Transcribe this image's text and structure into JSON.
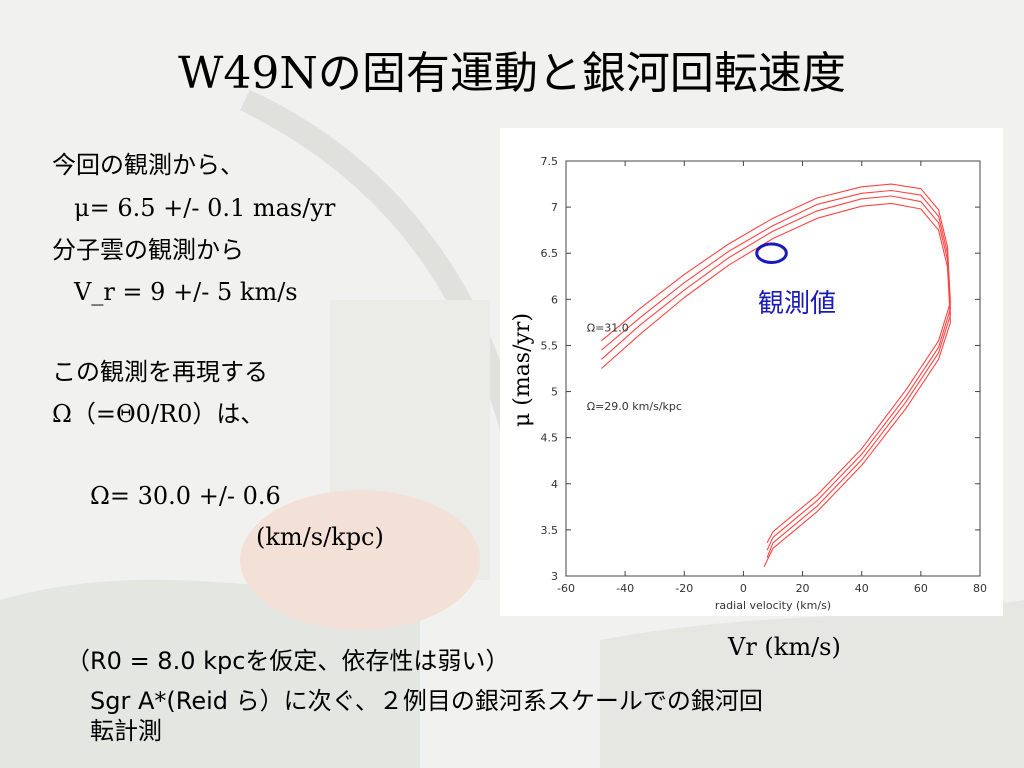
{
  "slide": {
    "title": "W49Nの固有運動と銀河回転速度",
    "left_text": {
      "line1": "今回の観測から、",
      "line2": "μ= 6.5 +/- 0.1 mas/yr",
      "line3": "分子雲の観測から",
      "line4": "V_r = 9 +/- 5 km/s",
      "line5": "この観測を再現する",
      "line6a": "Ω（=Θ0/R0）",
      "line6b": "は、",
      "line7": "Ω= 30.0 +/- 0.6",
      "line8": "(km/s/kpc)"
    },
    "bottom_text": {
      "line1": "（R0 = 8.0 kpcを仮定、依存性は弱い）",
      "line2": "Sgr A*(Reid ら）に次ぐ、２例目の銀河系スケールでの銀河回",
      "line3": "転計測"
    },
    "colors": {
      "curve": "#ff4444",
      "observed": "#1a1ab8"
    }
  },
  "chart_data": {
    "type": "line",
    "xlabel": "radial velocity (km/s)",
    "ylabel": "μ (mas/yr)",
    "xlabel_large": "Vr (km/s)",
    "xlim": [
      -60,
      80
    ],
    "ylim": [
      3,
      7.5
    ],
    "x_ticks": [
      -60,
      -40,
      -20,
      0,
      20,
      40,
      60,
      80
    ],
    "y_ticks": [
      3,
      3.5,
      4,
      4.5,
      5,
      5.5,
      6,
      6.5,
      7,
      7.5
    ],
    "x_tick_labels": [
      "-60",
      "-40",
      "-20",
      "0",
      "20",
      "40",
      "60",
      "80"
    ],
    "y_tick_labels": [
      "3",
      "3.5",
      "4",
      "4.5",
      "5",
      "5.5",
      "6",
      "6.5",
      "7",
      "7.5"
    ],
    "series": [
      {
        "x": [
          -48,
          -35,
          -20,
          -5,
          10,
          25,
          40,
          50,
          60,
          66,
          69,
          70,
          66,
          55,
          40,
          25,
          10,
          7
        ],
        "y": [
          5.25,
          5.62,
          6.02,
          6.37,
          6.66,
          6.88,
          7.01,
          7.04,
          6.98,
          6.75,
          6.35,
          5.75,
          5.35,
          4.82,
          4.2,
          3.7,
          3.3,
          3.1
        ]
      },
      {
        "x": [
          -48,
          -35,
          -20,
          -5,
          10,
          25,
          40,
          50,
          60,
          66,
          69,
          70,
          66,
          55,
          40,
          25,
          10,
          8
        ],
        "y": [
          5.35,
          5.72,
          6.1,
          6.45,
          6.74,
          6.96,
          7.09,
          7.12,
          7.06,
          6.83,
          6.43,
          5.83,
          5.42,
          4.89,
          4.26,
          3.76,
          3.36,
          3.2
        ]
      },
      {
        "x": [
          -48,
          -35,
          -20,
          -5,
          10,
          25,
          40,
          50,
          60,
          66,
          69,
          70,
          66,
          55,
          40,
          25,
          10,
          8
        ],
        "y": [
          5.45,
          5.8,
          6.18,
          6.52,
          6.8,
          7.03,
          7.15,
          7.18,
          7.13,
          6.9,
          6.5,
          5.9,
          5.48,
          4.95,
          4.32,
          3.82,
          3.42,
          3.28
        ]
      },
      {
        "x": [
          -48,
          -35,
          -20,
          -5,
          10,
          25,
          40,
          50,
          60,
          66,
          69,
          70,
          66,
          55,
          40,
          25,
          10,
          8
        ],
        "y": [
          5.55,
          5.9,
          6.27,
          6.6,
          6.88,
          7.1,
          7.22,
          7.25,
          7.2,
          6.97,
          6.57,
          5.97,
          5.55,
          5.02,
          4.38,
          3.88,
          3.48,
          3.36
        ]
      }
    ],
    "annotations": [
      {
        "text": "Ω=31.0",
        "x": -53,
        "y": 5.65
      },
      {
        "text": "Ω=29.0  km/s/kpc",
        "x": -53,
        "y": 4.8
      },
      {
        "text": "観測値",
        "x": 42,
        "y": 5.9
      }
    ],
    "observed": {
      "x": 9.5,
      "y": 6.5,
      "rx": 5,
      "ry": 0.1
    }
  }
}
